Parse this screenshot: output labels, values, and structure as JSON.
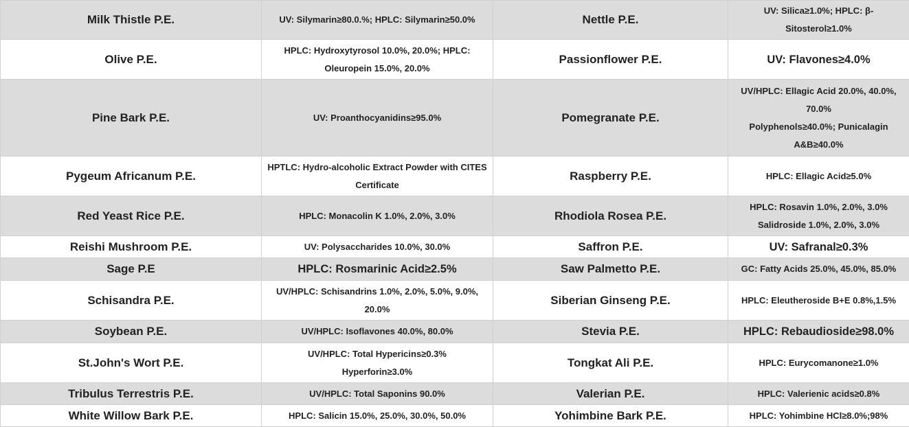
{
  "rows": [
    {
      "name1": "Milk Thistle P.E.",
      "spec1": "UV: Silymarin≥80.0.%; HPLC: Silymarin≥50.0%",
      "name2": "Nettle P.E.",
      "spec2": "UV: Silica≥1.0%; HPLC: β-Sitosterol≥1.0%"
    },
    {
      "name1": "Olive P.E.",
      "spec1": "HPLC: Hydroxytyrosol 10.0%, 20.0%; HPLC: Oleuropein 15.0%, 20.0%",
      "name2": "Passionflower P.E.",
      "spec2": "UV: Flavones≥4.0%"
    },
    {
      "name1": "Pine Bark P.E.",
      "spec1": "UV: Proanthocyanidins≥95.0%",
      "name2": "Pomegranate P.E.",
      "spec2": "UV/HPLC: Ellagic Acid 20.0%, 40.0%, 70.0%\nPolyphenols≥40.0%; Punicalagin A&B≥40.0%"
    },
    {
      "name1": "Pygeum Africanum P.E.",
      "spec1": "HPTLC: Hydro-alcoholic Extract Powder with CITES Certificate",
      "name2": "Raspberry P.E.",
      "spec2": "HPLC: Ellagic Acid≥5.0%"
    },
    {
      "name1": "Red Yeast Rice P.E.",
      "spec1": "HPLC: Monacolin K 1.0%, 2.0%, 3.0%",
      "name2": "Rhodiola Rosea P.E.",
      "spec2": "HPLC: Rosavin 1.0%, 2.0%, 3.0%\nSalidroside 1.0%, 2.0%, 3.0%"
    },
    {
      "name1": "Reishi Mushroom P.E.",
      "spec1": "UV: Polysaccharides 10.0%, 30.0%",
      "name2": "Saffron P.E.",
      "spec2": "UV: Safranal≥0.3%"
    },
    {
      "name1": "Sage P.E",
      "spec1": "HPLC: Rosmarinic Acid≥2.5%",
      "name2": "Saw Palmetto P.E.",
      "spec2": "GC: Fatty Acids 25.0%, 45.0%, 85.0%"
    },
    {
      "name1": "Schisandra P.E.",
      "spec1": "UV/HPLC: Schisandrins 1.0%, 2.0%, 5.0%, 9.0%, 20.0%",
      "name2": "Siberian Ginseng P.E.",
      "spec2": "HPLC: Eleutheroside B+E 0.8%,1.5%"
    },
    {
      "name1": "Soybean P.E.",
      "spec1": "UV/HPLC: Isoflavones 40.0%, 80.0%",
      "name2": "Stevia P.E.",
      "spec2": "HPLC: Rebaudioside≥98.0%"
    },
    {
      "name1": "St.John's Wort P.E.",
      "spec1": "UV/HPLC: Total Hypericins≥0.3%\nHyperforin≥3.0%",
      "name2": "Tongkat Ali P.E.",
      "spec2": "HPLC: Eurycomanone≥1.0%"
    },
    {
      "name1": "Tribulus Terrestris P.E.",
      "spec1": "UV/HPLC: Total Saponins 90.0%",
      "name2": "Valerian P.E.",
      "spec2": "HPLC: Valerienic acids≥0.8%"
    },
    {
      "name1": "White Willow Bark P.E.",
      "spec1": "HPLC: Salicin 15.0%, 25.0%, 30.0%, 50.0%",
      "name2": "Yohimbine Bark P.E.",
      "spec2": "HPLC: Yohimbine HCl≥8.0%;98%"
    }
  ],
  "colors": {
    "row_alt": "#dcdcdc",
    "row": "#ffffff",
    "text": "#222222"
  }
}
